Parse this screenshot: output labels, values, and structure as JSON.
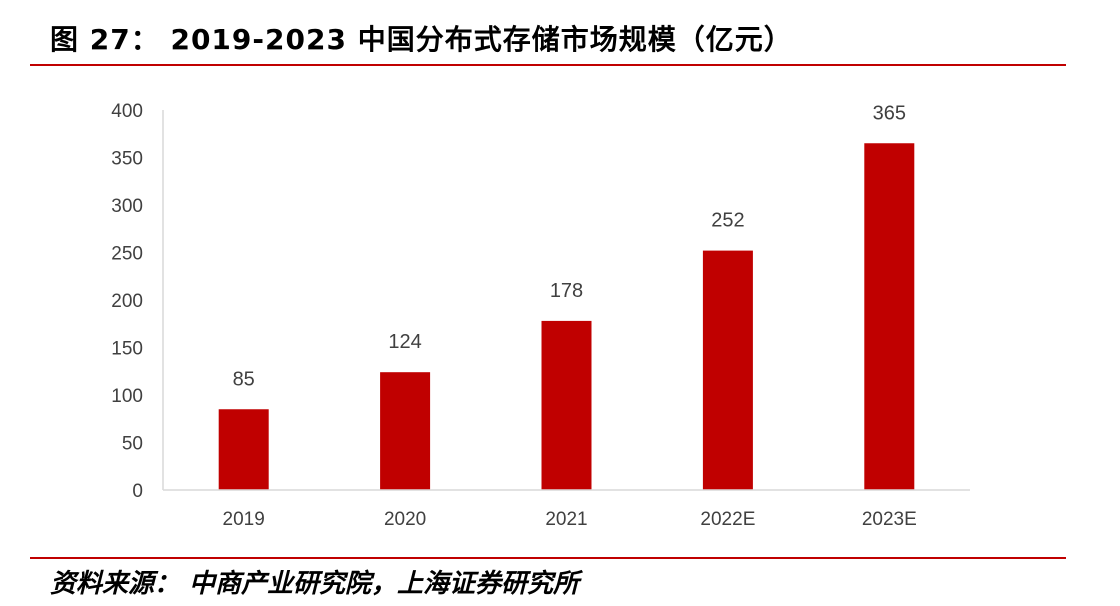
{
  "figure": {
    "title": "图 27： 2019-2023 中国分布式存储市场规模（亿元）",
    "source": "资料来源： 中商产业研究院，上海证券研究所"
  },
  "colors": {
    "bar": "#c00000",
    "rule": "#c00000",
    "axis": "#d9d9d9",
    "text": "#404040"
  },
  "chart_data": {
    "type": "bar",
    "title": "2019-2023 中国分布式存储市场规模（亿元）",
    "categories": [
      "2019",
      "2020",
      "2021",
      "2022E",
      "2023E"
    ],
    "values": [
      85,
      124,
      178,
      252,
      365
    ],
    "data_labels": [
      "85",
      "124",
      "178",
      "252",
      "365"
    ],
    "ylim": [
      0,
      400
    ],
    "yticks": [
      0,
      50,
      100,
      150,
      200,
      250,
      300,
      350,
      400
    ],
    "xlabel": "",
    "ylabel": "",
    "grid": false,
    "legend": "none"
  }
}
